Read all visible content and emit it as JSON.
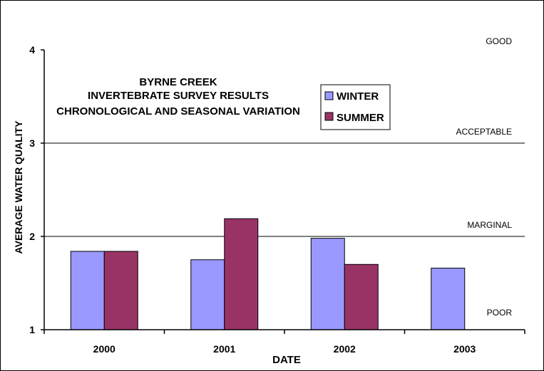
{
  "chart_data": {
    "type": "bar",
    "title_lines": [
      "BYRNE CREEK",
      "INVERTEBRATE SURVEY RESULTS",
      "CHRONOLOGICAL AND SEASONAL VARIATION"
    ],
    "xlabel": "DATE",
    "ylabel": "AVERAGE WATER QUALITY",
    "categories": [
      "2000",
      "2001",
      "2002",
      "2003"
    ],
    "ylim": [
      1,
      4
    ],
    "yticks": [
      "1",
      "2",
      "3",
      "4"
    ],
    "series": [
      {
        "name": "WINTER",
        "color": "#9999ff",
        "values": [
          1.84,
          1.75,
          1.98,
          1.66
        ]
      },
      {
        "name": "SUMMER",
        "color": "#993366",
        "values": [
          1.84,
          2.19,
          1.7,
          null
        ]
      }
    ],
    "quality_levels": [
      {
        "label": "GOOD",
        "value": 4
      },
      {
        "label": "ACCEPTABLE",
        "value": 3
      },
      {
        "label": "MARGINAL",
        "value": 2
      },
      {
        "label": "POOR",
        "value": 1
      }
    ],
    "legend_position": "top-center",
    "grid": "horizontal at 2 and 3"
  }
}
